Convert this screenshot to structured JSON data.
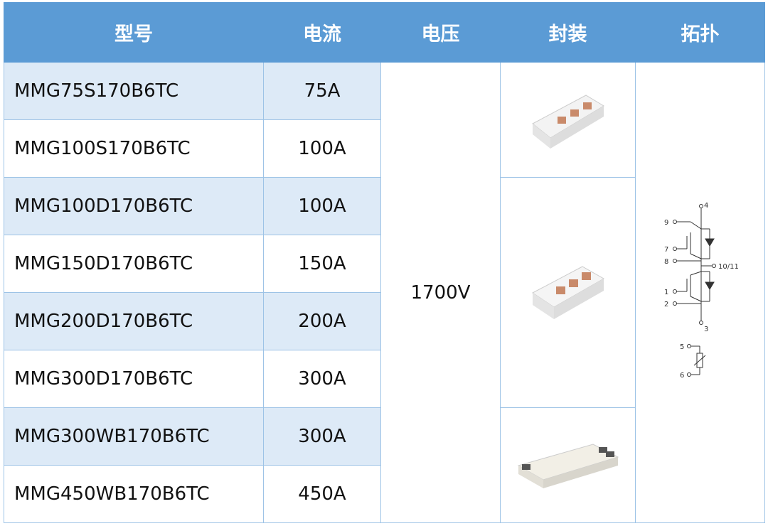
{
  "headers": [
    "型号",
    "电流",
    "电压",
    "封装",
    "拓扑"
  ],
  "rows": [
    {
      "model": "MMG75S170B6TC",
      "current": "75A"
    },
    {
      "model": "MMG100S170B6TC",
      "current": "100A"
    },
    {
      "model": "MMG100D170B6TC",
      "current": "100A"
    },
    {
      "model": "MMG150D170B6TC",
      "current": "150A"
    },
    {
      "model": "MMG200D170B6TC",
      "current": "200A"
    },
    {
      "model": "MMG300D170B6TC",
      "current": "300A"
    },
    {
      "model": "MMG300WB170B6TC",
      "current": "300A"
    },
    {
      "model": "MMG450WB170B6TC",
      "current": "450A"
    }
  ],
  "voltage": "1700V",
  "topology_pins": {
    "p9": "9",
    "p7": "7",
    "p8": "8",
    "p1": "1",
    "p2": "2",
    "p4": "4",
    "p3": "3",
    "p10": "10/11",
    "p5": "5",
    "p6": "6"
  },
  "colors": {
    "header": "#5b9bd5",
    "alt_row": "#ddeaf7",
    "border": "#9dc3e6"
  }
}
